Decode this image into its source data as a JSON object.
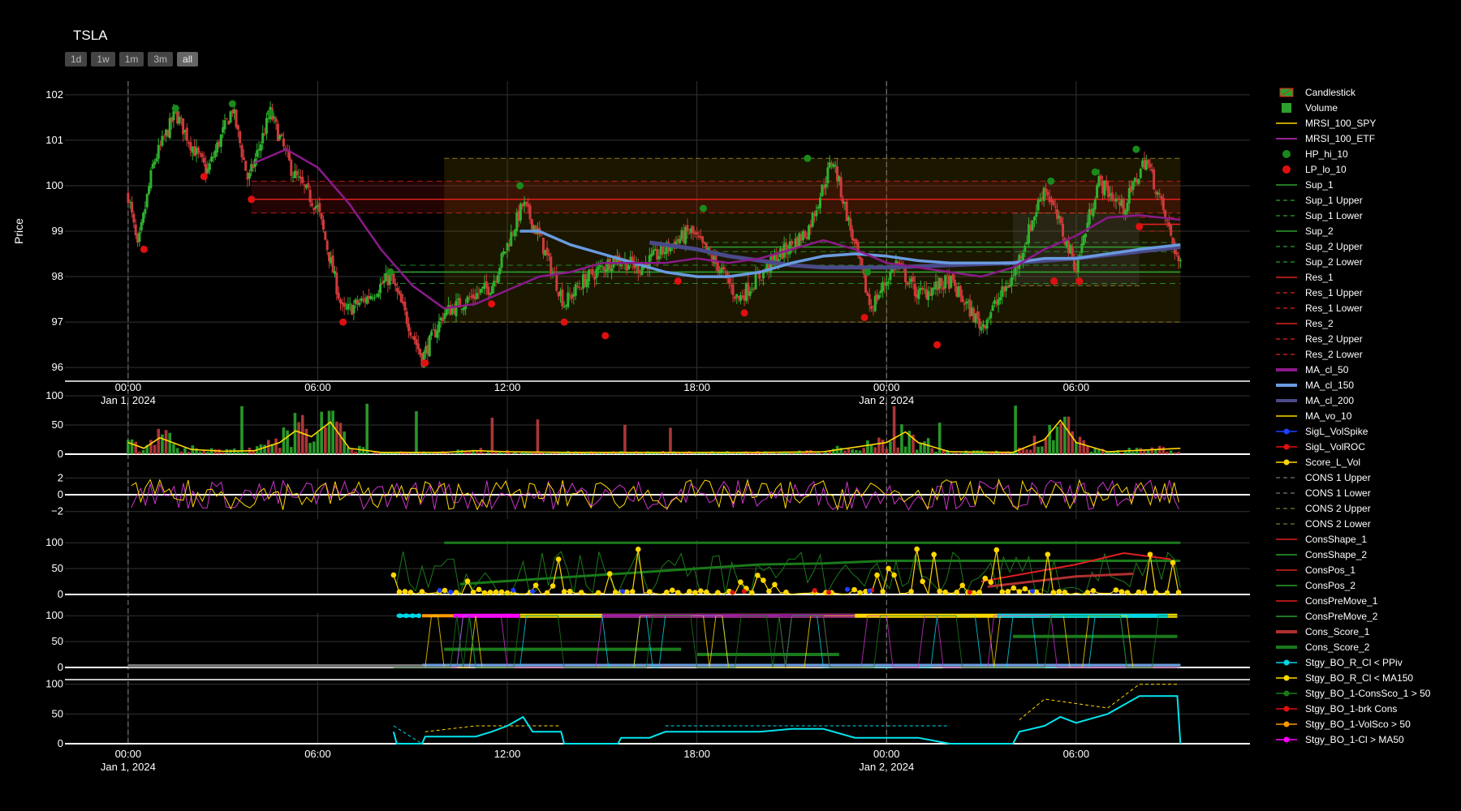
{
  "title": "TSLA",
  "range_buttons": [
    "1d",
    "1w",
    "1m",
    "3m",
    "all"
  ],
  "active_range": "all",
  "chart_data": [
    {
      "type": "candlestick",
      "ylabel": "Price",
      "ylim": [
        95.7,
        102.3
      ],
      "yticks": [
        96,
        97,
        98,
        99,
        100,
        101,
        102
      ],
      "xticks": [
        {
          "t": 0,
          "label": "00:00",
          "sub": "Jan 1, 2024"
        },
        {
          "t": 6,
          "label": "06:00",
          "sub": ""
        },
        {
          "t": 12,
          "label": "12:00",
          "sub": ""
        },
        {
          "t": 18,
          "label": "18:00",
          "sub": ""
        },
        {
          "t": 24,
          "label": "00:00",
          "sub": "Jan 2, 2024"
        },
        {
          "t": 30,
          "label": "06:00",
          "sub": ""
        }
      ],
      "x_range_hours": [
        -2,
        35.5
      ],
      "price_path": [
        [
          0,
          99.8
        ],
        [
          0.3,
          98.6
        ],
        [
          0.8,
          100.5
        ],
        [
          1.5,
          101.6
        ],
        [
          2,
          100.9
        ],
        [
          2.5,
          100.3
        ],
        [
          3.3,
          101.7
        ],
        [
          3.8,
          100.1
        ],
        [
          4.5,
          101.6
        ],
        [
          5.2,
          100.3
        ],
        [
          6,
          99.5
        ],
        [
          6.8,
          97.2
        ],
        [
          7.5,
          97.5
        ],
        [
          8.3,
          98.0
        ],
        [
          9.3,
          96.2
        ],
        [
          10,
          97.2
        ],
        [
          11.5,
          97.8
        ],
        [
          12.5,
          99.6
        ],
        [
          13,
          98.9
        ],
        [
          13.8,
          97.4
        ],
        [
          14.4,
          97.9
        ],
        [
          15.4,
          98.4
        ],
        [
          16.2,
          98.2
        ],
        [
          17,
          98.6
        ],
        [
          17.8,
          99.0
        ],
        [
          18.8,
          98.1
        ],
        [
          19.3,
          97.5
        ],
        [
          20.5,
          98.4
        ],
        [
          21.5,
          99.0
        ],
        [
          22.3,
          100.6
        ],
        [
          22.8,
          99.2
        ],
        [
          23.5,
          97.3
        ],
        [
          24.3,
          98.3
        ],
        [
          25,
          97.6
        ],
        [
          26,
          97.9
        ],
        [
          27,
          96.9
        ],
        [
          28,
          98.0
        ],
        [
          29,
          100.0
        ],
        [
          30,
          98.2
        ],
        [
          30.7,
          100.1
        ],
        [
          31.5,
          99.5
        ],
        [
          32.2,
          100.6
        ],
        [
          32.6,
          99.8
        ],
        [
          33.3,
          98.2
        ]
      ],
      "hp_hi_10": [
        [
          1.5,
          101.7
        ],
        [
          3.3,
          101.8
        ],
        [
          4.5,
          101.6
        ],
        [
          8.3,
          98.1
        ],
        [
          12.4,
          100.0
        ],
        [
          18.2,
          99.5
        ],
        [
          21.5,
          100.6
        ],
        [
          23.4,
          98.1
        ],
        [
          29.2,
          100.1
        ],
        [
          30.6,
          100.3
        ],
        [
          31.9,
          100.8
        ]
      ],
      "lp_lo_10": [
        [
          0.5,
          98.6
        ],
        [
          2.4,
          100.2
        ],
        [
          3.9,
          99.7
        ],
        [
          6.8,
          97.0
        ],
        [
          9.4,
          96.1
        ],
        [
          11.5,
          97.4
        ],
        [
          13.8,
          97.0
        ],
        [
          15.1,
          96.7
        ],
        [
          17.4,
          97.9
        ],
        [
          19.5,
          97.2
        ],
        [
          23.3,
          97.1
        ],
        [
          25.6,
          96.5
        ],
        [
          29.3,
          97.9
        ],
        [
          30.1,
          97.9
        ],
        [
          32,
          99.1
        ]
      ],
      "levels": {
        "sup_1": {
          "value": 98.1,
          "upper": 98.25,
          "lower": 97.85,
          "from": 8.3,
          "to": 33.3
        },
        "sup_2": {
          "value": 98.65,
          "upper": 98.75,
          "lower": 98.55,
          "from": 18.2,
          "to": 33.3
        },
        "res_1": {
          "value": 99.7,
          "upper": 100.1,
          "lower": 99.4,
          "from": 3.9,
          "to": 33.3
        },
        "res_2": {
          "value": 99.15,
          "upper": 99.3,
          "lower": 99.0,
          "from": 32,
          "to": 33.3
        }
      },
      "cons_boxes": [
        {
          "upper": 100.6,
          "lower": 97.0,
          "from": 10.0,
          "to": 33.3
        },
        {
          "upper": 99.4,
          "lower": 97.8,
          "from": 28.0,
          "to": 32.0
        }
      ],
      "ma_cl_50": [
        [
          4,
          100.5
        ],
        [
          5,
          100.8
        ],
        [
          6,
          100.4
        ],
        [
          7,
          99.6
        ],
        [
          8,
          98.6
        ],
        [
          9,
          97.8
        ],
        [
          10,
          97.3
        ],
        [
          11,
          97.4
        ],
        [
          12,
          97.7
        ],
        [
          13,
          98.0
        ],
        [
          14,
          98.1
        ],
        [
          15,
          98.3
        ],
        [
          16,
          98.3
        ],
        [
          17,
          98.3
        ],
        [
          18,
          98.4
        ],
        [
          19,
          98.3
        ],
        [
          20,
          98.4
        ],
        [
          21,
          98.6
        ],
        [
          22,
          98.8
        ],
        [
          23,
          98.6
        ],
        [
          24,
          98.3
        ],
        [
          25,
          98.2
        ],
        [
          26,
          98.1
        ],
        [
          27,
          98.0
        ],
        [
          28,
          98.2
        ],
        [
          29,
          98.6
        ],
        [
          30,
          98.9
        ],
        [
          31,
          99.3
        ],
        [
          32,
          99.35
        ],
        [
          33.3,
          99.25
        ]
      ],
      "ma_cl_150": [
        [
          12.4,
          99.0
        ],
        [
          13,
          99.0
        ],
        [
          14,
          98.7
        ],
        [
          15,
          98.5
        ],
        [
          16,
          98.3
        ],
        [
          17,
          98.1
        ],
        [
          18,
          98.0
        ],
        [
          19,
          98.0
        ],
        [
          20,
          98.1
        ],
        [
          21,
          98.3
        ],
        [
          22,
          98.45
        ],
        [
          23,
          98.5
        ],
        [
          24,
          98.45
        ],
        [
          25,
          98.35
        ],
        [
          26,
          98.3
        ],
        [
          27,
          98.3
        ],
        [
          28,
          98.3
        ],
        [
          29,
          98.4
        ],
        [
          30,
          98.4
        ],
        [
          31,
          98.5
        ],
        [
          32,
          98.6
        ],
        [
          33.3,
          98.7
        ]
      ],
      "ma_cl_200": [
        [
          16.5,
          98.75
        ],
        [
          18,
          98.6
        ],
        [
          19,
          98.45
        ],
        [
          20,
          98.35
        ],
        [
          21,
          98.25
        ],
        [
          22,
          98.2
        ],
        [
          24,
          98.2
        ],
        [
          26,
          98.25
        ],
        [
          28,
          98.3
        ],
        [
          30,
          98.4
        ],
        [
          32,
          98.55
        ],
        [
          33.3,
          98.65
        ]
      ]
    },
    {
      "type": "bar",
      "series_names": [
        "Volume",
        "MA_vo_10"
      ],
      "ylim": [
        0,
        100
      ],
      "yticks": [
        0,
        50,
        100
      ],
      "volume_ma_path": [
        [
          0,
          20
        ],
        [
          0.5,
          10
        ],
        [
          1,
          28
        ],
        [
          2,
          8
        ],
        [
          3,
          5
        ],
        [
          4,
          6
        ],
        [
          4.8,
          20
        ],
        [
          5.3,
          40
        ],
        [
          5.8,
          30
        ],
        [
          6.4,
          55
        ],
        [
          7,
          10
        ],
        [
          8,
          3
        ],
        [
          10,
          3
        ],
        [
          11,
          6
        ],
        [
          12,
          4
        ],
        [
          14,
          3
        ],
        [
          16,
          3
        ],
        [
          18,
          3
        ],
        [
          20,
          3
        ],
        [
          22,
          4
        ],
        [
          23,
          12
        ],
        [
          24,
          20
        ],
        [
          24.6,
          38
        ],
        [
          25,
          20
        ],
        [
          26,
          4
        ],
        [
          28,
          3
        ],
        [
          29,
          25
        ],
        [
          29.5,
          58
        ],
        [
          30,
          20
        ],
        [
          31,
          4
        ],
        [
          33.3,
          10
        ]
      ]
    },
    {
      "type": "line",
      "series_names": [
        "MRSI_100_SPY",
        "MRSI_100_ETF"
      ],
      "ylim": [
        -2.9,
        3.1
      ],
      "yticks": [
        -2,
        0,
        2
      ]
    },
    {
      "type": "line",
      "series_names": [
        "Cons_Score_1",
        "Cons_Score_2",
        "Score_L_Vol"
      ],
      "ylim": [
        0,
        105
      ],
      "yticks": [
        0,
        50,
        100
      ],
      "cons_score_2": [
        [
          10,
          100
        ],
        [
          15,
          100
        ],
        [
          20,
          100
        ],
        [
          24,
          100
        ],
        [
          30,
          100
        ],
        [
          33.3,
          100
        ]
      ],
      "cons_score_2_trend": [
        [
          10.5,
          20
        ],
        [
          15,
          38
        ],
        [
          20,
          58
        ],
        [
          22,
          60
        ],
        [
          24,
          65
        ],
        [
          33.3,
          65
        ]
      ],
      "cons_score_1": [
        [
          27,
          25
        ],
        [
          30,
          58
        ],
        [
          31.5,
          80
        ],
        [
          33,
          68
        ]
      ]
    },
    {
      "type": "line",
      "series_names": [
        "Stgy_BO_R_Cl < PPiv",
        "Stgy_BO_R_Cl < MA150",
        "Stgy_BO_1-ConsSco_1 > 50",
        "Stgy_BO_1-brk Cons",
        "Stgy_BO_1-VolSco > 50",
        "Stgy_BO_1-Cl > MA50"
      ],
      "ylim": [
        0,
        105
      ],
      "yticks": [
        0,
        50,
        100
      ]
    },
    {
      "type": "area",
      "ylim": [
        0,
        105
      ],
      "yticks": [
        0,
        50,
        100
      ],
      "xticks": [
        {
          "t": 0,
          "label": "00:00",
          "sub": "Jan 1, 2024"
        },
        {
          "t": 6,
          "label": "06:00",
          "sub": ""
        },
        {
          "t": 12,
          "label": "12:00",
          "sub": ""
        },
        {
          "t": 18,
          "label": "18:00",
          "sub": ""
        },
        {
          "t": 24,
          "label": "00:00",
          "sub": "Jan 2, 2024"
        },
        {
          "t": 30,
          "label": "06:00",
          "sub": ""
        }
      ],
      "cyan_path": [
        [
          8.4,
          20
        ],
        [
          8.5,
          0
        ],
        [
          9.3,
          0
        ],
        [
          9.4,
          12
        ],
        [
          11,
          12
        ],
        [
          11.5,
          20
        ],
        [
          12,
          30
        ],
        [
          12.5,
          45
        ],
        [
          12.8,
          20
        ],
        [
          13.7,
          20
        ],
        [
          13.8,
          0
        ],
        [
          15.5,
          0
        ],
        [
          15.6,
          10
        ],
        [
          16.5,
          10
        ],
        [
          17,
          20
        ],
        [
          20,
          20
        ],
        [
          21,
          25
        ],
        [
          22,
          25
        ],
        [
          23,
          10
        ],
        [
          24,
          10
        ],
        [
          25,
          10
        ],
        [
          26,
          0
        ],
        [
          28,
          0
        ],
        [
          28.2,
          20
        ],
        [
          29,
          30
        ],
        [
          29.5,
          45
        ],
        [
          30,
          35
        ],
        [
          31,
          50
        ],
        [
          31.5,
          65
        ],
        [
          32,
          80
        ],
        [
          33.2,
          80
        ],
        [
          33.3,
          0
        ]
      ],
      "dashed_paths": [
        [
          [
            8.4,
            30
          ],
          [
            9.3,
            0
          ]
        ],
        [
          [
            9.4,
            20
          ],
          [
            11,
            30
          ],
          [
            13.7,
            30
          ]
        ],
        [
          [
            17,
            30
          ],
          [
            22,
            30
          ],
          [
            26,
            30
          ]
        ],
        [
          [
            28.2,
            40
          ],
          [
            29,
            75
          ],
          [
            31,
            60
          ],
          [
            32,
            100
          ],
          [
            33.2,
            100
          ]
        ]
      ]
    }
  ],
  "legend": [
    {
      "name": "Candlestick",
      "icon": "candle",
      "color": "#2ca02c"
    },
    {
      "name": "Volume",
      "icon": "square",
      "color": "#2ca02c"
    },
    {
      "name": "MRSI_100_SPY",
      "icon": "line",
      "color": "#ffd700"
    },
    {
      "name": "MRSI_100_ETF",
      "icon": "line",
      "color": "#cc33cc"
    },
    {
      "name": "HP_hi_10",
      "icon": "dot",
      "color": "#1a8a1a"
    },
    {
      "name": "LP_lo_10",
      "icon": "dot",
      "color": "#e01010"
    },
    {
      "name": "Sup_1",
      "icon": "line",
      "color": "#2ca02c"
    },
    {
      "name": "Sup_1 Upper",
      "icon": "dash",
      "color": "#2ca02c"
    },
    {
      "name": "Sup_1 Lower",
      "icon": "dash",
      "color": "#2ca02c"
    },
    {
      "name": "Sup_2",
      "icon": "line",
      "color": "#2ca02c"
    },
    {
      "name": "Sup_2 Upper",
      "icon": "dash",
      "color": "#2ca02c"
    },
    {
      "name": "Sup_2 Lower",
      "icon": "dash",
      "color": "#2ca02c"
    },
    {
      "name": "Res_1",
      "icon": "line",
      "color": "#e02020"
    },
    {
      "name": "Res_1 Upper",
      "icon": "dash",
      "color": "#e02020"
    },
    {
      "name": "Res_1 Lower",
      "icon": "dash",
      "color": "#e02020"
    },
    {
      "name": "Res_2",
      "icon": "line",
      "color": "#e02020"
    },
    {
      "name": "Res_2 Upper",
      "icon": "dash",
      "color": "#e02020"
    },
    {
      "name": "Res_2 Lower",
      "icon": "dash",
      "color": "#e02020"
    },
    {
      "name": "MA_cl_50",
      "icon": "thick",
      "color": "#8b1a8b"
    },
    {
      "name": "MA_cl_150",
      "icon": "thick",
      "color": "#6a9be0"
    },
    {
      "name": "MA_cl_200",
      "icon": "thick",
      "color": "#4a4a8a"
    },
    {
      "name": "MA_vo_10",
      "icon": "line",
      "color": "#ffd700"
    },
    {
      "name": "SigL_VolSpike",
      "icon": "linedot",
      "color": "#1f3fff"
    },
    {
      "name": "SigL_VolROC",
      "icon": "linedot",
      "color": "#e01010"
    },
    {
      "name": "Score_L_Vol",
      "icon": "linedot",
      "color": "#ffd700"
    },
    {
      "name": "CONS 1 Upper",
      "icon": "dash",
      "color": "#777777"
    },
    {
      "name": "CONS 1 Lower",
      "icon": "dash",
      "color": "#777777"
    },
    {
      "name": "CONS 2 Upper",
      "icon": "dash",
      "color": "#7a7a3a"
    },
    {
      "name": "CONS 2 Lower",
      "icon": "dash",
      "color": "#7a7a3a"
    },
    {
      "name": "ConsShape_1",
      "icon": "line",
      "color": "#e02020"
    },
    {
      "name": "ConsShape_2",
      "icon": "line",
      "color": "#2ca02c"
    },
    {
      "name": "ConsPos_1",
      "icon": "line",
      "color": "#e02020"
    },
    {
      "name": "ConsPos_2",
      "icon": "line",
      "color": "#2ca02c"
    },
    {
      "name": "ConsPreMove_1",
      "icon": "line",
      "color": "#e02020"
    },
    {
      "name": "ConsPreMove_2",
      "icon": "line",
      "color": "#2ca02c"
    },
    {
      "name": "Cons_Score_1",
      "icon": "thick",
      "color": "#b03030"
    },
    {
      "name": "Cons_Score_2",
      "icon": "thick",
      "color": "#1a7a1a"
    },
    {
      "name": "Stgy_BO_R_Cl < PPiv",
      "icon": "linedot",
      "color": "#00d8e8"
    },
    {
      "name": "Stgy_BO_R_Cl < MA150",
      "icon": "linedot",
      "color": "#ffd700"
    },
    {
      "name": "Stgy_BO_1-ConsSco_1 > 50",
      "icon": "linedot",
      "color": "#1a7a1a"
    },
    {
      "name": "Stgy_BO_1-brk Cons",
      "icon": "linedot",
      "color": "#e01010"
    },
    {
      "name": "Stgy_BO_1-VolSco > 50",
      "icon": "linedot",
      "color": "#ff9900"
    },
    {
      "name": "Stgy_BO_1-Cl > MA50",
      "icon": "linedot",
      "color": "#ff00ff"
    }
  ]
}
